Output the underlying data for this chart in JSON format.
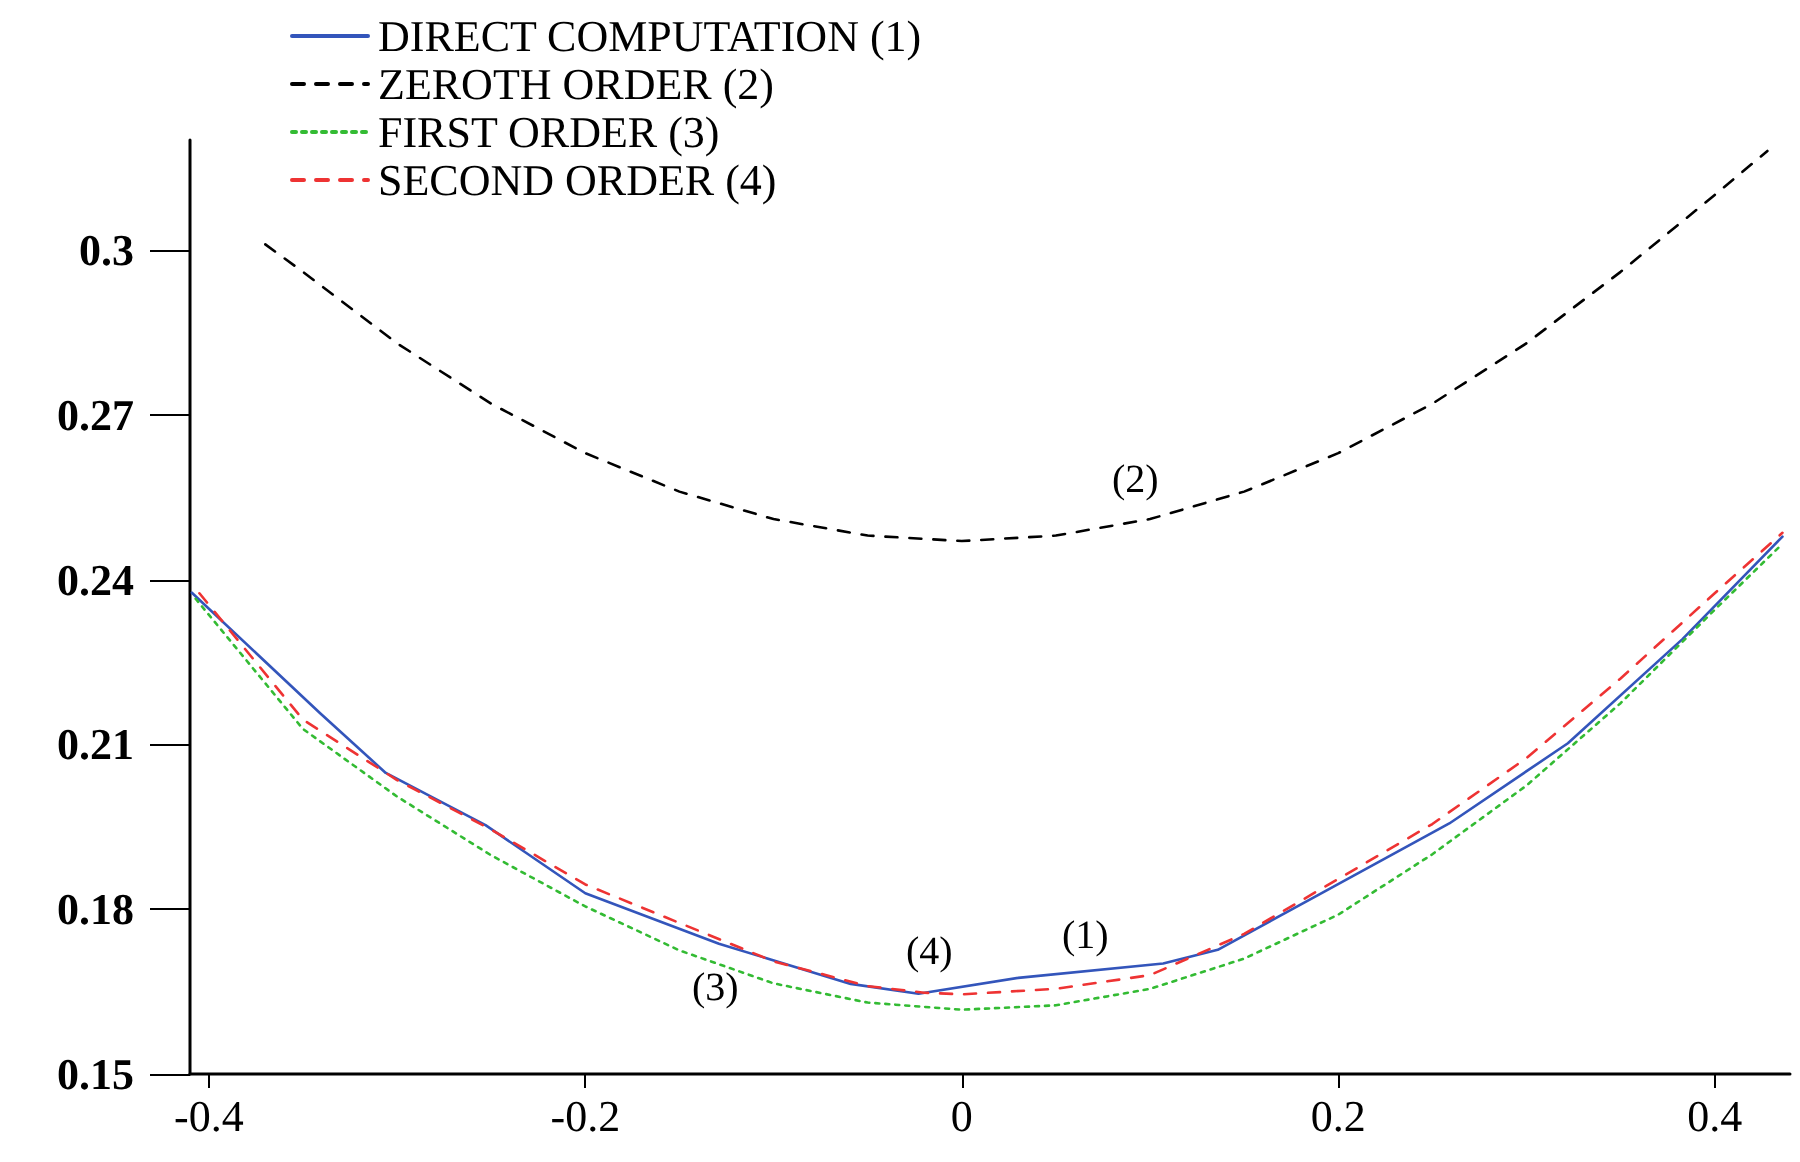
{
  "chart_data": {
    "type": "line",
    "xlim": [
      -0.41,
      0.44
    ],
    "ylim": [
      0.15,
      0.32
    ],
    "xticks": [
      -0.4,
      -0.2,
      0,
      0.2,
      0.4
    ],
    "yticks": [
      0.15,
      0.18,
      0.21,
      0.24,
      0.27,
      0.3
    ],
    "grid": false,
    "legend": "top left",
    "marker": "none",
    "series": [
      {
        "name": "DIRECT COMPUTATION (1)",
        "color": "#3355bb",
        "line_style": "solid",
        "x": [
          -0.409,
          -0.341,
          -0.306,
          -0.253,
          -0.2,
          -0.129,
          -0.059,
          -0.023,
          0.03,
          0.107,
          0.136,
          0.189,
          0.259,
          0.322,
          0.383,
          0.436
        ],
        "values": [
          0.2376,
          0.2157,
          0.2048,
          0.1953,
          0.1829,
          0.1737,
          0.1664,
          0.1646,
          0.1675,
          0.1701,
          0.1726,
          0.1825,
          0.1956,
          0.2102,
          0.2292,
          0.2478
        ]
      },
      {
        "name": "ZEROTH ORDER (2)",
        "color": "#000000",
        "line_style": "dashed",
        "x": [
          -0.37,
          -0.35,
          -0.3,
          -0.25,
          -0.2,
          -0.15,
          -0.1,
          -0.05,
          0,
          0.05,
          0.1,
          0.15,
          0.2,
          0.25,
          0.3,
          0.35,
          0.4,
          0.428
        ],
        "values": [
          0.301,
          0.296,
          0.283,
          0.272,
          0.263,
          0.256,
          0.251,
          0.248,
          0.247,
          0.248,
          0.251,
          0.256,
          0.263,
          0.272,
          0.283,
          0.296,
          0.31,
          0.318
        ]
      },
      {
        "name": "FIRST ORDER (3)",
        "color": "#33bb33",
        "line_style": "dotted",
        "x": [
          -0.407,
          -0.35,
          -0.3,
          -0.25,
          -0.2,
          -0.15,
          -0.1,
          -0.05,
          0,
          0.05,
          0.1,
          0.15,
          0.2,
          0.25,
          0.3,
          0.35,
          0.4,
          0.436
        ],
        "values": [
          0.2365,
          0.2128,
          0.2005,
          0.1898,
          0.1805,
          0.1725,
          0.1665,
          0.163,
          0.1617,
          0.1625,
          0.1655,
          0.171,
          0.179,
          0.19,
          0.2025,
          0.2175,
          0.2345,
          0.2465
        ]
      },
      {
        "name": "SECOND ORDER (4)",
        "color": "#ee3333",
        "line_style": "dashed",
        "x": [
          -0.405,
          -0.35,
          -0.3,
          -0.25,
          -0.2,
          -0.15,
          -0.1,
          -0.05,
          -0.02,
          0,
          0.05,
          0.1,
          0.15,
          0.2,
          0.25,
          0.3,
          0.35,
          0.4,
          0.436
        ],
        "values": [
          0.2375,
          0.2145,
          0.2035,
          0.1945,
          0.1845,
          0.1775,
          0.1705,
          0.166,
          0.1648,
          0.1645,
          0.1655,
          0.168,
          0.1755,
          0.1855,
          0.1955,
          0.2075,
          0.222,
          0.2375,
          0.2485
        ]
      }
    ],
    "annotations": [
      "(1)",
      "(2)",
      "(3)",
      "(4)"
    ]
  }
}
